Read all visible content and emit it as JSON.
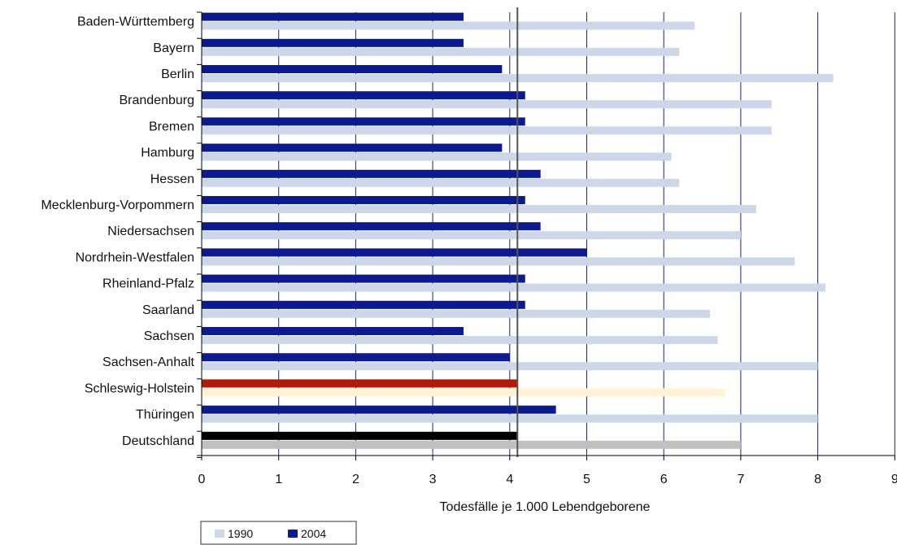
{
  "chart_data": {
    "type": "bar",
    "orientation": "horizontal",
    "categories": [
      "Baden-Württemberg",
      "Bayern",
      "Berlin",
      "Brandenburg",
      "Bremen",
      "Hamburg",
      "Hessen",
      "Mecklenburg-Vorpommern",
      "Niedersachsen",
      "Nordrhein-Westfalen",
      "Rheinland-Pfalz",
      "Saarland",
      "Sachsen",
      "Sachsen-Anhalt",
      "Schleswig-Holstein",
      "Thüringen",
      "Deutschland"
    ],
    "series": [
      {
        "name": "2004",
        "color": "#0d1a8c",
        "values": [
          3.4,
          3.4,
          3.9,
          4.2,
          4.2,
          3.9,
          4.4,
          4.2,
          4.4,
          5.0,
          4.2,
          4.2,
          3.4,
          4.0,
          4.1,
          4.6,
          4.1
        ]
      },
      {
        "name": "1990",
        "color": "#ccd8e8",
        "values": [
          6.4,
          6.2,
          8.2,
          7.4,
          7.4,
          6.1,
          6.2,
          7.2,
          7.0,
          7.7,
          8.1,
          6.6,
          6.7,
          8.0,
          6.8,
          8.0,
          7.0
        ]
      }
    ],
    "highlight_colors": {
      "Schleswig-Holstein": {
        "2004": "#b01a0a",
        "1990": "#fff5d6"
      },
      "Deutschland": {
        "2004": "#000000",
        "1990": "#c0c0c0"
      }
    },
    "reference_line": {
      "value": 4.1,
      "color": "#555555"
    },
    "xlim": [
      0,
      9
    ],
    "xticks": [
      "0",
      "1",
      "2",
      "3",
      "4",
      "5",
      "6",
      "7",
      "8",
      "9"
    ],
    "xlabel": "Todesfälle je 1.000 Lebendgeborene",
    "gridline_color": "#1a237e",
    "grid": true,
    "legend": {
      "position": "bottom-left",
      "entries": [
        {
          "label": "1990",
          "color": "#ccd8e8"
        },
        {
          "label": "2004",
          "color": "#0d1a8c"
        }
      ]
    }
  }
}
